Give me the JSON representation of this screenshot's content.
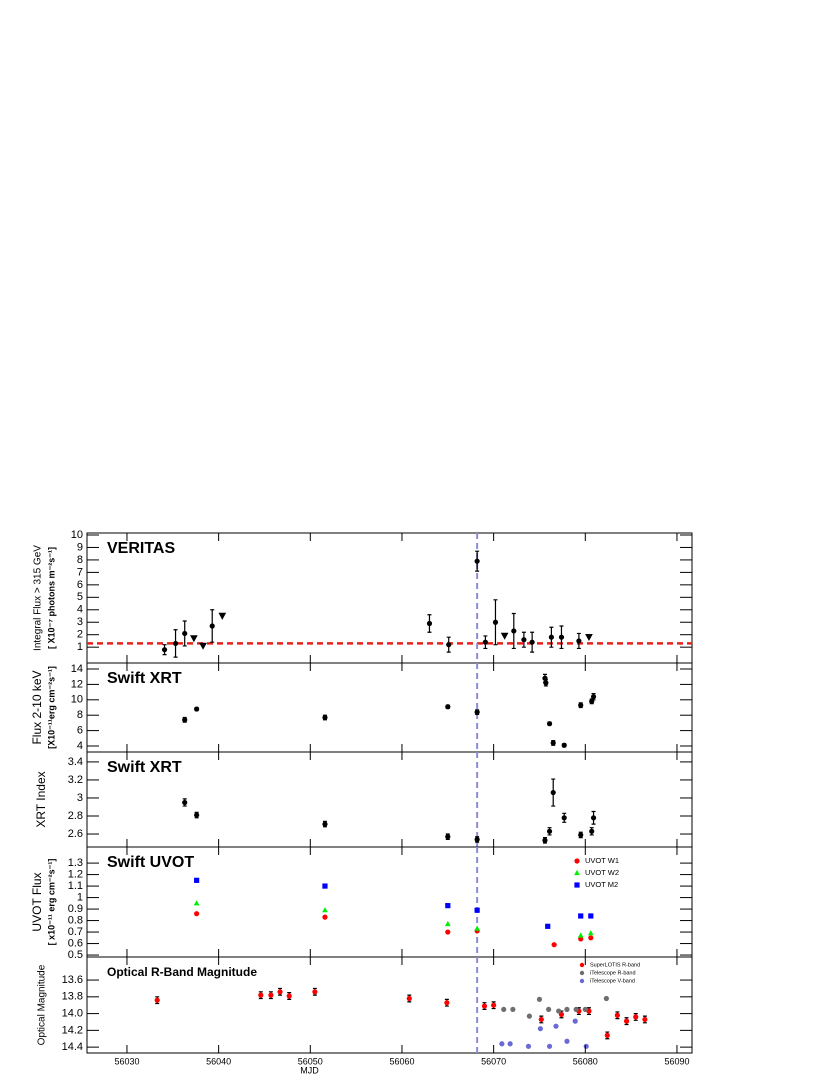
{
  "chart_data": [
    {
      "type": "scatter",
      "title": "VERITAS",
      "ylabel": [
        "Integral Flux > 315 GeV",
        "[ X10⁻⁷ photons m⁻²s⁻¹]"
      ],
      "xlim": [
        56025.64,
        56091.64
      ],
      "ylim": [
        -0.27,
        10.16
      ],
      "yticks": [
        1,
        2,
        3,
        4,
        5,
        6,
        7,
        8,
        9,
        10
      ],
      "x": [
        56034.1,
        56035.3,
        56036.3,
        56039.3,
        56063.0,
        56065.1,
        56068.2,
        56069.1,
        56070.2,
        56072.2,
        56073.3,
        56074.2,
        56076.3,
        56077.4,
        56079.3
      ],
      "values": [
        0.8,
        1.3,
        2.1,
        2.7,
        2.9,
        1.2,
        7.9,
        1.4,
        3.0,
        2.3,
        1.6,
        1.4,
        1.8,
        1.8,
        1.5
      ],
      "errors": [
        0.4,
        1.1,
        1.0,
        1.3,
        0.7,
        0.6,
        0.8,
        0.5,
        1.8,
        1.4,
        0.6,
        0.8,
        0.8,
        0.9,
        0.6
      ],
      "color": "#000000",
      "marker": "circle",
      "upper_limits": {
        "x": [
          56037.3,
          56038.3,
          56040.4,
          56071.2,
          56080.4
        ],
        "values": [
          1.7,
          1.1,
          3.5,
          1.9,
          1.8
        ]
      },
      "threshold": 1.3,
      "threshold_color": "#e8201c",
      "vline": 56068.2,
      "vline_color": "#8c8cd8"
    },
    {
      "type": "scatter",
      "title": "Swift XRT",
      "ylabel": [
        "Flux 2-10 keV",
        "[X10⁻¹¹erg cm⁻²s⁻¹]"
      ],
      "xlim": [
        56025.64,
        56091.64
      ],
      "ylim": [
        3.22,
        14.78
      ],
      "yticks": [
        4,
        6,
        8,
        10,
        12,
        14
      ],
      "x": [
        56036.3,
        56037.6,
        56051.6,
        56065.0,
        56068.2,
        56075.6,
        56075.7,
        56076.1,
        56076.5,
        56077.7,
        56079.5,
        56080.7,
        56080.9
      ],
      "values": [
        7.4,
        8.8,
        7.7,
        9.1,
        8.4,
        12.8,
        12.2,
        6.9,
        4.4,
        4.1,
        9.3,
        9.8,
        10.4
      ],
      "errors": [
        0.3,
        0.2,
        0.3,
        0.2,
        0.3,
        0.5,
        0.4,
        0.2,
        0.3,
        0.2,
        0.3,
        0.3,
        0.4
      ],
      "color": "#000000",
      "marker": "circle",
      "vline": 56068.2,
      "vline_color": "#8c8cd8"
    },
    {
      "type": "scatter",
      "title": "Swift XRT",
      "ylabel": [
        "XRT Index"
      ],
      "xlim": [
        56025.64,
        56091.64
      ],
      "ylim": [
        2.456,
        3.51
      ],
      "yticks": [
        2.6,
        2.8,
        3,
        3.2,
        3.4
      ],
      "x": [
        56036.3,
        56037.6,
        56051.6,
        56065.0,
        56068.2,
        56075.6,
        56076.1,
        56076.5,
        56077.7,
        56079.5,
        56080.7,
        56080.9
      ],
      "values": [
        2.95,
        2.81,
        2.71,
        2.57,
        2.54,
        2.53,
        2.63,
        3.06,
        2.78,
        2.59,
        2.63,
        2.78
      ],
      "errors": [
        0.04,
        0.03,
        0.03,
        0.03,
        0.03,
        0.03,
        0.04,
        0.15,
        0.05,
        0.03,
        0.04,
        0.07
      ],
      "color": "#000000",
      "marker": "circle",
      "vline": 56068.2,
      "vline_color": "#8c8cd8"
    },
    {
      "type": "scatter",
      "title": "Swift UVOT",
      "ylabel": [
        "UVOT Flux",
        "[ x10⁻¹¹ erg cm⁻²s⁻¹]"
      ],
      "xlim": [
        56025.64,
        56091.64
      ],
      "ylim": [
        0.483,
        1.44
      ],
      "yticks": [
        0.5,
        0.6,
        0.7,
        0.8,
        0.9,
        1,
        1.1,
        1.2,
        1.3
      ],
      "legend": "upper right",
      "series": [
        {
          "name": "UVOT W1",
          "color": "#ff0000",
          "marker": "circle",
          "x": [
            56037.6,
            56051.6,
            56065.0,
            56068.2,
            56076.6,
            56079.5,
            56080.6
          ],
          "values": [
            0.86,
            0.83,
            0.7,
            0.71,
            0.59,
            0.64,
            0.65
          ]
        },
        {
          "name": "UVOT W2",
          "color": "#00ee00",
          "marker": "triangle",
          "x": [
            56037.6,
            56051.6,
            56065.0,
            56068.2,
            56079.5,
            56080.6
          ],
          "values": [
            0.95,
            0.89,
            0.77,
            0.73,
            0.67,
            0.69
          ]
        },
        {
          "name": "UVOT M2",
          "color": "#0000ff",
          "marker": "square",
          "x": [
            56037.6,
            56051.6,
            56065.0,
            56068.2,
            56075.9,
            56079.5,
            56080.6
          ],
          "values": [
            1.15,
            1.1,
            0.93,
            0.89,
            0.75,
            0.84,
            0.84
          ]
        }
      ],
      "vline": 56068.2,
      "vline_color": "#8c8cd8"
    },
    {
      "type": "scatter",
      "title": "Optical R-Band Magnitude",
      "ylabel": [
        "Optical Magnitude"
      ],
      "xlim": [
        56025.64,
        56091.64
      ],
      "ylim": [
        14.47,
        13.325
      ],
      "yticks": [
        13.6,
        13.8,
        {
          "value": 14,
          "label": "14.0"
        },
        14.2,
        14.4
      ],
      "xticks": [
        56030,
        56040,
        56050,
        56060,
        56070,
        56080,
        56090
      ],
      "xlabel": "MJD",
      "legend": "upper right",
      "series": [
        {
          "name": "SuperLOTIS R-band",
          "color": "#ff0000",
          "marker": "circle",
          "x": [
            56033.3,
            56044.6,
            56045.7,
            56046.7,
            56047.7,
            56050.5,
            56060.8,
            56064.9,
            56069.0,
            56070.0,
            56075.2,
            56077.4,
            56079.3,
            56080.4,
            56082.4,
            56083.5,
            56084.5,
            56085.5,
            56086.5
          ],
          "values": [
            13.84,
            13.78,
            13.78,
            13.74,
            13.79,
            13.74,
            13.82,
            13.87,
            13.91,
            13.9,
            14.07,
            14.01,
            13.97,
            13.97,
            14.26,
            14.02,
            14.09,
            14.04,
            14.07
          ],
          "errors": [
            0.04,
            0.04,
            0.04,
            0.04,
            0.04,
            0.04,
            0.04,
            0.04,
            0.04,
            0.04,
            0.04,
            0.04,
            0.04,
            0.04,
            0.04,
            0.04,
            0.04,
            0.04,
            0.04
          ]
        },
        {
          "name": "iTelescope R-band",
          "color": "#6e6e6e",
          "marker": "circle",
          "x": [
            56071.1,
            56072.1,
            56073.9,
            56075.0,
            56076.0,
            56077.1,
            56078.0,
            56079.0,
            56080.0,
            56082.3
          ],
          "values": [
            13.95,
            13.95,
            14.03,
            13.83,
            13.95,
            13.97,
            13.95,
            13.95,
            13.95,
            13.82
          ]
        },
        {
          "name": "iTelescope V-band",
          "color": "#6a6ad6",
          "marker": "circle",
          "x": [
            56070.9,
            56071.8,
            56073.8,
            56075.1,
            56076.1,
            56076.8,
            56078.0,
            56078.9,
            56080.1
          ],
          "values": [
            14.36,
            14.36,
            14.39,
            14.18,
            14.39,
            14.15,
            14.33,
            14.09,
            14.39
          ]
        }
      ],
      "vline": 56068.2,
      "vline_color": "#8c8cd8"
    }
  ]
}
